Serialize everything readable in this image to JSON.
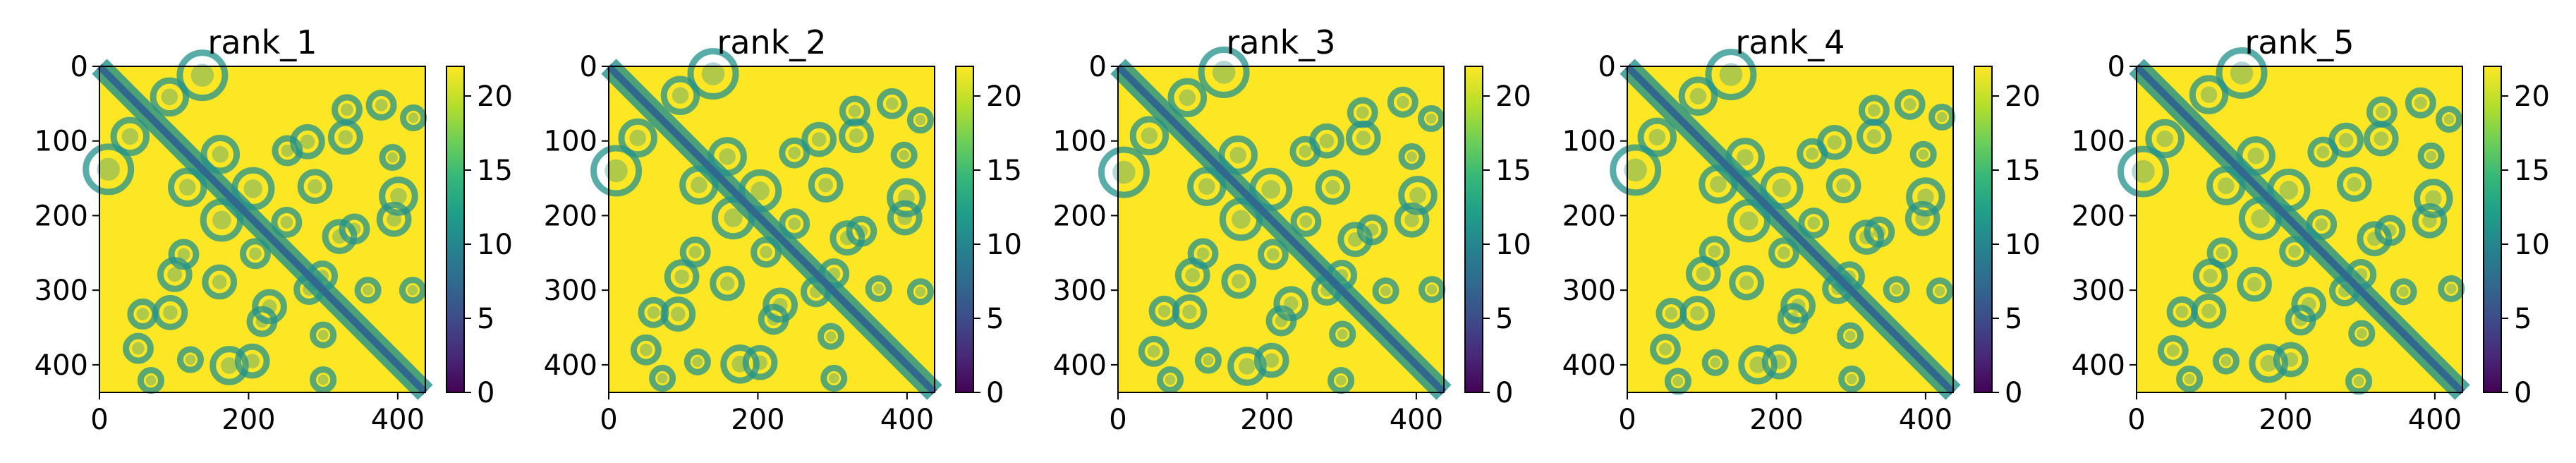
{
  "chart_data": [
    {
      "type": "heatmap",
      "title": "rank_1",
      "xticks": [
        0,
        200,
        400
      ],
      "yticks": [
        0,
        100,
        200,
        300,
        400
      ],
      "xlim": [
        0,
        437
      ],
      "ylim": [
        437,
        0
      ],
      "colorbar": {
        "ticks": [
          0,
          5,
          10,
          15,
          20
        ],
        "range": [
          0,
          22
        ]
      }
    },
    {
      "type": "heatmap",
      "title": "rank_2",
      "xticks": [
        0,
        200,
        400
      ],
      "yticks": [
        0,
        100,
        200,
        300,
        400
      ],
      "xlim": [
        0,
        437
      ],
      "ylim": [
        437,
        0
      ],
      "colorbar": {
        "ticks": [
          0,
          5,
          10,
          15,
          20
        ],
        "range": [
          0,
          22
        ]
      }
    },
    {
      "type": "heatmap",
      "title": "rank_3",
      "xticks": [
        0,
        200,
        400
      ],
      "yticks": [
        0,
        100,
        200,
        300,
        400
      ],
      "xlim": [
        0,
        437
      ],
      "ylim": [
        437,
        0
      ],
      "colorbar": {
        "ticks": [
          0,
          5,
          10,
          15,
          20
        ],
        "range": [
          0,
          22
        ]
      }
    },
    {
      "type": "heatmap",
      "title": "rank_4",
      "xticks": [
        0,
        200,
        400
      ],
      "yticks": [
        0,
        100,
        200,
        300,
        400
      ],
      "xlim": [
        0,
        437
      ],
      "ylim": [
        437,
        0
      ],
      "colorbar": {
        "ticks": [
          0,
          5,
          10,
          15,
          20
        ],
        "range": [
          0,
          22
        ]
      }
    },
    {
      "type": "heatmap",
      "title": "rank_5",
      "xticks": [
        0,
        200,
        400
      ],
      "yticks": [
        0,
        100,
        200,
        300,
        400
      ],
      "xlim": [
        0,
        437
      ],
      "ylim": [
        437,
        0
      ],
      "colorbar": {
        "ticks": [
          0,
          5,
          10,
          15,
          20
        ],
        "range": [
          0,
          22
        ]
      }
    }
  ],
  "colormap": "viridis",
  "colors": {
    "low": "#440154",
    "mid": "#21918c",
    "high": "#fde725"
  }
}
